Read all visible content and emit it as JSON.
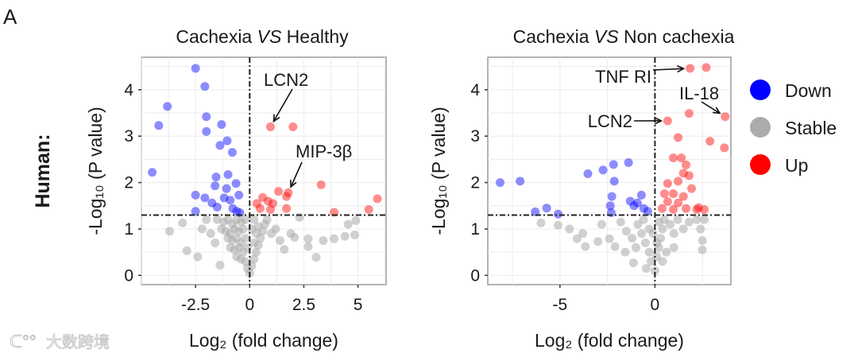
{
  "panel_label": "A",
  "row_label": "Human:",
  "watermark": "大数跨境",
  "legend": [
    {
      "label": "Down",
      "color": "#0000ff"
    },
    {
      "label": "Stable",
      "color": "#a6a6a6"
    },
    {
      "label": "Up",
      "color": "#ff0000"
    }
  ],
  "chart_data": [
    {
      "type": "scatter",
      "title": "Cachexia VS Healthy",
      "title_parts": [
        "Cachexia ",
        "VS",
        "  Healthy"
      ],
      "xlabel": "Log₂ (fold change)",
      "ylabel": "-Log₁₀ (P value)",
      "xlim": [
        -5,
        6.3
      ],
      "ylim": [
        -0.2,
        4.7
      ],
      "xticks": [
        -2.5,
        0,
        2.5,
        5
      ],
      "xtick_labels": [
        "-2.5",
        "0",
        "2.5",
        "5"
      ],
      "yticks": [
        0,
        1,
        2,
        3,
        4
      ],
      "ytick_labels": [
        "0",
        "1",
        "2",
        "3",
        "4"
      ],
      "grid": true,
      "thresholds": {
        "x": 0,
        "y": 1.3
      },
      "annotations": [
        {
          "label": "LCN2",
          "point": [
            0.96,
            3.2
          ]
        },
        {
          "label": "MIP-3β",
          "point": [
            1.78,
            1.78
          ]
        }
      ],
      "series": [
        {
          "name": "Down",
          "points": [
            [
              -2.5,
              4.46
            ],
            [
              -2.07,
              4.07
            ],
            [
              -3.8,
              3.64
            ],
            [
              -4.2,
              3.23
            ],
            [
              -2.0,
              3.42
            ],
            [
              -2.0,
              3.1
            ],
            [
              -1.3,
              3.25
            ],
            [
              -1.04,
              2.9
            ],
            [
              -1.37,
              2.8
            ],
            [
              -0.8,
              2.65
            ],
            [
              -4.5,
              2.22
            ],
            [
              -1.55,
              2.12
            ],
            [
              -1.0,
              2.17
            ],
            [
              -1.6,
              1.93
            ],
            [
              -1.07,
              1.87
            ],
            [
              -0.63,
              1.98
            ],
            [
              -2.5,
              1.73
            ],
            [
              -2.07,
              1.67
            ],
            [
              -1.74,
              1.56
            ],
            [
              -1.5,
              1.47
            ],
            [
              -1.18,
              1.67
            ],
            [
              -0.5,
              1.73
            ],
            [
              -0.78,
              1.44
            ],
            [
              -2.5,
              1.38
            ],
            [
              -0.6,
              1.38
            ],
            [
              -0.9,
              1.62
            ],
            [
              -0.45,
              1.35
            ]
          ]
        },
        {
          "name": "Stable",
          "points": [
            [
              -3.7,
              0.95
            ],
            [
              -3.1,
              1.13
            ],
            [
              -2.9,
              0.53
            ],
            [
              -2.4,
              0.4
            ],
            [
              -1.37,
              0.22
            ],
            [
              -2.0,
              1.2
            ],
            [
              -1.8,
              0.9
            ],
            [
              -1.6,
              0.7
            ],
            [
              -2.2,
              1.0
            ],
            [
              -1.5,
              1.2
            ],
            [
              -1.2,
              1.15
            ],
            [
              -1.0,
              1.2
            ],
            [
              -0.8,
              1.1
            ],
            [
              -0.6,
              1.2
            ],
            [
              -0.4,
              1.15
            ],
            [
              -0.2,
              1.2
            ],
            [
              -1.3,
              1.0
            ],
            [
              -1.1,
              0.95
            ],
            [
              -0.9,
              0.9
            ],
            [
              -0.7,
              1.0
            ],
            [
              -0.5,
              0.95
            ],
            [
              -0.3,
              1.0
            ],
            [
              -1.0,
              0.8
            ],
            [
              -0.8,
              0.75
            ],
            [
              -0.6,
              0.8
            ],
            [
              -0.4,
              0.7
            ],
            [
              -0.2,
              0.8
            ],
            [
              -0.9,
              0.6
            ],
            [
              -0.7,
              0.55
            ],
            [
              -0.5,
              0.6
            ],
            [
              -0.3,
              0.5
            ],
            [
              -0.1,
              0.6
            ],
            [
              -0.6,
              0.4
            ],
            [
              -0.4,
              0.35
            ],
            [
              -0.2,
              0.3
            ],
            [
              -0.1,
              0.15
            ],
            [
              0,
              0.05
            ],
            [
              0.1,
              0.2
            ],
            [
              0.2,
              0.35
            ],
            [
              0.3,
              0.5
            ],
            [
              0.4,
              0.65
            ],
            [
              0.5,
              0.8
            ],
            [
              0.6,
              0.95
            ],
            [
              0.7,
              1.1
            ],
            [
              0.8,
              1.2
            ],
            [
              0.2,
              0.7
            ],
            [
              0.3,
              0.9
            ],
            [
              0.1,
              1.0
            ],
            [
              0.2,
              1.2
            ],
            [
              0.4,
              1.05
            ],
            [
              1.0,
              0.9
            ],
            [
              1.2,
              1.0
            ],
            [
              1.4,
              0.75
            ],
            [
              1.6,
              0.56
            ],
            [
              1.9,
              0.9
            ],
            [
              2.07,
              0.82
            ],
            [
              2.3,
              1.25
            ],
            [
              2.7,
              0.79
            ],
            [
              2.7,
              0.62
            ],
            [
              3.07,
              0.39
            ],
            [
              3.4,
              0.75
            ],
            [
              3.9,
              0.79
            ],
            [
              4.4,
              0.84
            ],
            [
              4.85,
              0.87
            ],
            [
              4.55,
              1.1
            ],
            [
              4.9,
              1.18
            ]
          ]
        },
        {
          "name": "Up",
          "points": [
            [
              0.96,
              3.2
            ],
            [
              2.0,
              3.2
            ],
            [
              3.3,
              1.95
            ],
            [
              1.33,
              1.81
            ],
            [
              1.78,
              1.78
            ],
            [
              1.7,
              1.7
            ],
            [
              0.6,
              1.68
            ],
            [
              0.85,
              1.6
            ],
            [
              0.33,
              1.55
            ],
            [
              1.07,
              1.55
            ],
            [
              1.7,
              1.44
            ],
            [
              0.48,
              1.44
            ],
            [
              0.96,
              1.42
            ],
            [
              3.9,
              1.36
            ],
            [
              5.5,
              1.42
            ],
            [
              5.9,
              1.65
            ]
          ]
        }
      ]
    },
    {
      "type": "scatter",
      "title": "Cachexia VS Non cachexia",
      "title_parts": [
        "Cachexia ",
        "VS",
        " Non cachexia"
      ],
      "xlabel": "Log₂ (fold change)",
      "ylabel": "-Log₁₀ (P value)",
      "xlim": [
        -8.8,
        4.0
      ],
      "ylim": [
        -0.2,
        4.7
      ],
      "xticks": [
        -5,
        0
      ],
      "xtick_labels": [
        "-5",
        "0"
      ],
      "yticks": [
        0,
        1,
        2,
        3,
        4
      ],
      "ytick_labels": [
        "0",
        "1",
        "2",
        "3",
        "4"
      ],
      "grid": true,
      "thresholds": {
        "x": 0,
        "y": 1.3
      },
      "annotations": [
        {
          "label": "TNF RI",
          "point": [
            1.85,
            4.46
          ]
        },
        {
          "label": "IL-18",
          "point": [
            3.7,
            3.42
          ]
        },
        {
          "label": "LCN2",
          "point": [
            0.67,
            3.33
          ]
        }
      ],
      "series": [
        {
          "name": "Down",
          "points": [
            [
              -8.15,
              2.0
            ],
            [
              -7.1,
              2.03
            ],
            [
              -6.3,
              1.37
            ],
            [
              -5.7,
              1.45
            ],
            [
              -5.1,
              1.32
            ],
            [
              -3.53,
              2.19
            ],
            [
              -2.73,
              2.27
            ],
            [
              -2.18,
              2.39
            ],
            [
              -1.39,
              2.43
            ],
            [
              -2.14,
              2.03
            ],
            [
              -2.27,
              1.7
            ],
            [
              -2.35,
              1.5
            ],
            [
              -1.3,
              1.6
            ],
            [
              -0.71,
              1.73
            ],
            [
              -0.92,
              1.56
            ],
            [
              -0.59,
              1.44
            ],
            [
              -0.38,
              1.38
            ],
            [
              -1.1,
              1.5
            ],
            [
              -2.3,
              1.35
            ]
          ]
        },
        {
          "name": "Stable",
          "points": [
            [
              -6.0,
              1.13
            ],
            [
              -5.1,
              1.08
            ],
            [
              -4.5,
              1.0
            ],
            [
              -4.1,
              0.79
            ],
            [
              -3.66,
              0.62
            ],
            [
              -3.0,
              0.73
            ],
            [
              -2.4,
              0.79
            ],
            [
              -2.1,
              0.62
            ],
            [
              -1.56,
              0.5
            ],
            [
              -1.13,
              0.27
            ],
            [
              -0.46,
              0.15
            ],
            [
              -3.8,
              0.9
            ],
            [
              -2.8,
              1.1
            ],
            [
              -1.8,
              1.15
            ],
            [
              -1.5,
              0.95
            ],
            [
              -1.2,
              0.8
            ],
            [
              -0.9,
              1.1
            ],
            [
              -0.7,
              0.9
            ],
            [
              -0.5,
              0.7
            ],
            [
              -0.3,
              0.5
            ],
            [
              -0.2,
              0.3
            ],
            [
              0,
              0.1
            ],
            [
              0.1,
              0.4
            ],
            [
              0.2,
              0.6
            ],
            [
              0.3,
              0.8
            ],
            [
              0.4,
              1.0
            ],
            [
              0.5,
              1.2
            ],
            [
              0.8,
              1.1
            ],
            [
              1.0,
              0.9
            ],
            [
              1.2,
              1.2
            ],
            [
              1.5,
              1.0
            ],
            [
              1.8,
              1.15
            ],
            [
              2.2,
              1.2
            ],
            [
              2.4,
              1.0
            ],
            [
              2.6,
              1.2
            ],
            [
              1.0,
              0.6
            ],
            [
              0.6,
              0.5
            ],
            [
              0.4,
              0.3
            ],
            [
              -0.6,
              1.2
            ],
            [
              -0.3,
              1.0
            ],
            [
              -1.0,
              0.6
            ],
            [
              2.5,
              0.75
            ],
            [
              2.5,
              0.55
            ],
            [
              0.2,
              1.15
            ],
            [
              -0.1,
              0.9
            ],
            [
              0.1,
              0.7
            ]
          ]
        },
        {
          "name": "Up",
          "points": [
            [
              1.85,
              4.46
            ],
            [
              2.7,
              4.48
            ],
            [
              1.8,
              3.49
            ],
            [
              3.7,
              3.42
            ],
            [
              0.67,
              3.33
            ],
            [
              1.22,
              2.97
            ],
            [
              2.9,
              2.89
            ],
            [
              3.66,
              2.75
            ],
            [
              0.97,
              2.53
            ],
            [
              1.39,
              2.53
            ],
            [
              1.64,
              2.38
            ],
            [
              1.8,
              2.15
            ],
            [
              0.67,
              1.98
            ],
            [
              1.22,
              2.03
            ],
            [
              1.93,
              1.87
            ],
            [
              0.97,
              1.76
            ],
            [
              1.5,
              1.7
            ],
            [
              0.67,
              1.59
            ],
            [
              1.22,
              1.56
            ],
            [
              0.38,
              1.44
            ],
            [
              0.97,
              1.42
            ],
            [
              1.64,
              1.44
            ],
            [
              2.2,
              1.42
            ],
            [
              2.6,
              1.42
            ],
            [
              2.3,
              1.46
            ],
            [
              0.5,
              1.76
            ],
            [
              1.5,
              2.2
            ]
          ]
        }
      ]
    }
  ]
}
